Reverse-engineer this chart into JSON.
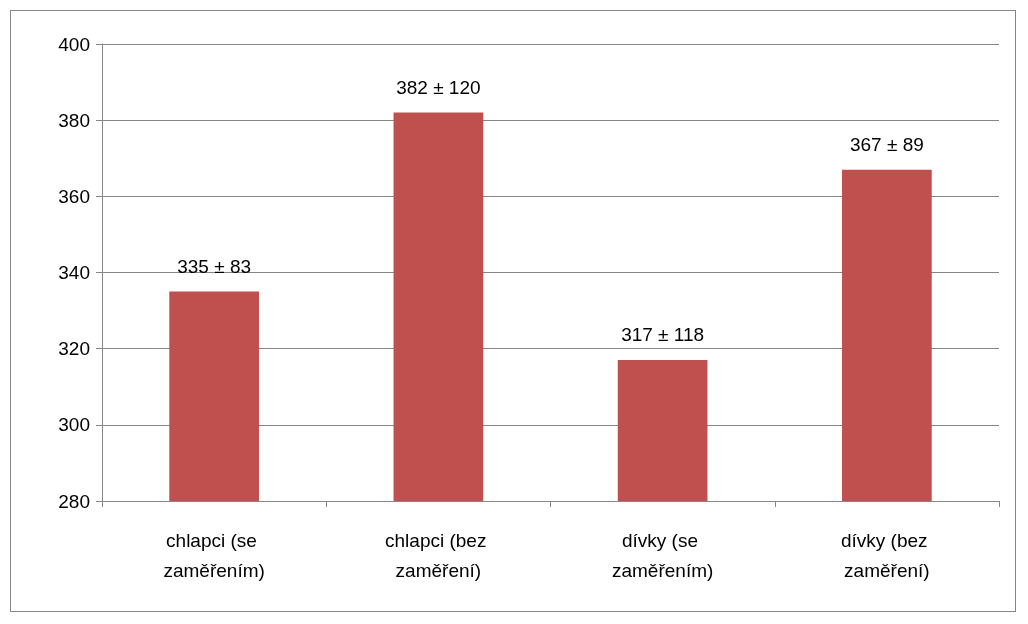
{
  "chart_data": {
    "type": "bar",
    "categories": [
      "chlapci (se zaměřením)",
      "chlapci (bez zaměření)",
      "dívky (se zaměřením)",
      "dívky (bez zaměření)"
    ],
    "values": [
      335,
      382,
      317,
      367
    ],
    "color": "#c0504d",
    "value_labels": [
      "335 ± 83",
      "382 ± 120",
      "317 ± 118",
      "367 ± 89"
    ],
    "ylim": [
      280,
      400
    ],
    "yticks": [
      280,
      300,
      320,
      340,
      360,
      380,
      400
    ],
    "grid": "y"
  }
}
